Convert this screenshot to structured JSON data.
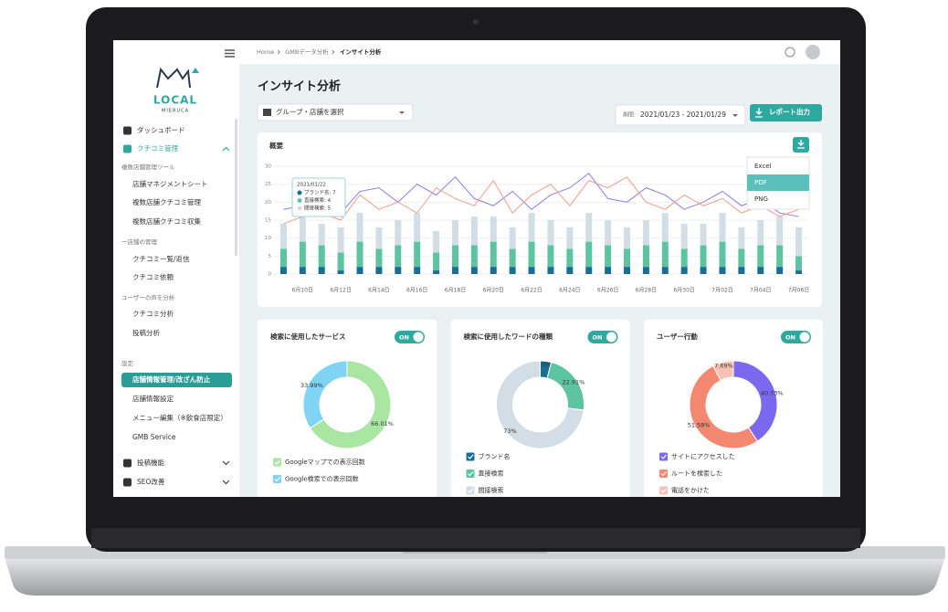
{
  "sidebar": {
    "logo": "LOCAL",
    "logo_sub": "MIERUCA",
    "items": [
      "ダッシュボード",
      "クチコミ管理",
      "複数店舗管理ツール",
      "店舗マネジメントシート",
      "複数店舗クチコミ管理",
      "複数店舗クチコミ収集",
      "一店舗の管理",
      "クチコミ一覧/返信",
      "クチコミ依頼",
      "ユーザーの声を分析",
      "クチコミ分析",
      "投稿分析",
      "設定",
      "店舗情報管理/改ざん防止",
      "店舗情報設定",
      "メニュー編集（※飲食店限定）",
      "GMB Service",
      "投稿機能",
      "SEO改善"
    ]
  },
  "header": {
    "breadcrumb": [
      "Home",
      "GMBデータ分析",
      "インサイト分析"
    ]
  },
  "page_title": "インサイト分析",
  "filters": {
    "store_select": "グループ・店舗を選択",
    "period_label": "期間:",
    "period": "2021/01/23 - 2021/01/29",
    "export_button": "レポート出力"
  },
  "overview": {
    "title": "概要",
    "export_menu": [
      "Excel",
      "PDF",
      "PNG"
    ],
    "tooltip": {
      "date": "2021/01/22",
      "rows": [
        "ブランド名: 7",
        "直接検索: 4",
        "間接検索: 5"
      ]
    },
    "chart_data": {
      "type": "bar",
      "stacked": true,
      "categories": [
        null,
        "6月10日",
        null,
        "6月12日",
        null,
        "6月14日",
        null,
        "6月16日",
        null,
        "6月18日",
        null,
        "6月20日",
        null,
        "6月22日",
        null,
        "6月24日",
        null,
        "6月26日",
        null,
        "6月28日",
        null,
        "6月30日",
        null,
        "7月02日",
        null,
        "7月04日",
        null,
        "7月06日"
      ],
      "ylim": [
        0,
        30
      ],
      "yticks": [
        0,
        5,
        10,
        15,
        20,
        25,
        30
      ],
      "grid": true,
      "series": [
        {
          "name": "ブランド名",
          "color": "#1a6e96",
          "values": [
            2,
            2,
            2,
            1,
            2,
            2,
            2,
            2,
            1,
            2,
            2,
            2,
            2,
            2,
            2,
            2,
            2,
            2,
            2,
            2,
            2,
            2,
            2,
            2,
            2,
            2,
            2,
            1
          ]
        },
        {
          "name": "直接検索",
          "color": "#5cc4a0",
          "values": [
            5,
            7,
            6,
            5,
            7,
            5,
            6,
            7,
            5,
            6,
            6,
            7,
            5,
            7,
            6,
            5,
            7,
            6,
            5,
            6,
            7,
            5,
            6,
            7,
            5,
            6,
            6,
            4
          ]
        },
        {
          "name": "間接検索",
          "color": "#d3dde5",
          "values": [
            7,
            7,
            6,
            7,
            8,
            6,
            7,
            8,
            6,
            7,
            8,
            7,
            6,
            8,
            7,
            6,
            8,
            7,
            6,
            7,
            8,
            7,
            6,
            8,
            6,
            7,
            8,
            8
          ]
        },
        {
          "type": "line",
          "color": "#8a7de8",
          "values": [
            18,
            19,
            22,
            17,
            23,
            24,
            20,
            25,
            22,
            27,
            21,
            19,
            23,
            18,
            22,
            24,
            28,
            21,
            20,
            24,
            22,
            18,
            20,
            23,
            19,
            21,
            17,
            16
          ]
        },
        {
          "type": "line",
          "color": "#f19b8c",
          "values": [
            14,
            16,
            17,
            15,
            22,
            18,
            20,
            17,
            24,
            21,
            19,
            26,
            17,
            22,
            25,
            19,
            26,
            24,
            27,
            20,
            18,
            22,
            19,
            21,
            17,
            19,
            16,
            18
          ]
        }
      ]
    }
  },
  "cards": [
    {
      "title": "検索に使用したサービス",
      "toggle": "ON",
      "chart_data": {
        "type": "pie",
        "categories": [
          "Googleマップでの表示回数",
          "Google検索での表示回数"
        ],
        "values": [
          66.01,
          33.99
        ],
        "value_labels": [
          "66.01%",
          "33.99%"
        ],
        "colors": [
          "#a8e6a1",
          "#7fd3f5"
        ]
      }
    },
    {
      "title": "検索に使用したワードの種類",
      "toggle": "ON",
      "chart_data": {
        "type": "pie",
        "categories": [
          "ブランド名",
          "直接検索",
          "間接検索"
        ],
        "values": [
          4.09,
          22.91,
          73
        ],
        "value_labels": [
          "4.09%",
          "22.91%",
          "73%"
        ],
        "colors": [
          "#1a6e96",
          "#5cc4a0",
          "#d3dde5"
        ]
      }
    },
    {
      "title": "ユーザー行動",
      "toggle": "ON",
      "chart_data": {
        "type": "pie",
        "categories": [
          "サイトにアクセスした",
          "ルートを検索した",
          "電話をかけた"
        ],
        "values": [
          40.73,
          51.58,
          7.69
        ],
        "value_labels": [
          "40.73%",
          "51.58%",
          "7.69%"
        ],
        "colors": [
          "#7b68ee",
          "#f4876f",
          "#f9c0b4"
        ]
      }
    }
  ]
}
